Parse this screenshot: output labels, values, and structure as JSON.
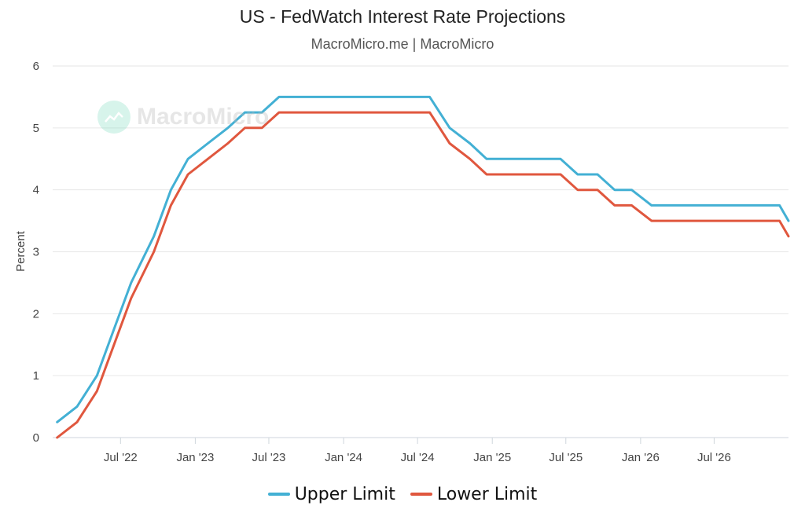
{
  "chart_data": {
    "type": "line",
    "title": "US - FedWatch Interest Rate Projections",
    "subtitle": "MacroMicro.me | MacroMicro",
    "ylabel": "Percent",
    "ylim": [
      0,
      6
    ],
    "yticks": [
      "0",
      "1",
      "2",
      "3",
      "4",
      "5",
      "6"
    ],
    "xticks": [
      "Jul '22",
      "Jan '23",
      "Jul '23",
      "Jan '24",
      "Jul '24",
      "Jan '25",
      "Jul '25",
      "Jan '26",
      "Jul '26"
    ],
    "xtick_dates": [
      "2022-07-01",
      "2023-01-01",
      "2023-07-01",
      "2024-01-01",
      "2024-07-01",
      "2025-01-01",
      "2025-07-01",
      "2026-01-01",
      "2026-07-01"
    ],
    "x_range": [
      "2022-01-15",
      "2026-12-31"
    ],
    "grid": true,
    "legend_position": "bottom-center",
    "series": [
      {
        "name": "Upper Limit",
        "color": "#43b0d4",
        "points": [
          [
            "2022-01-26",
            0.25
          ],
          [
            "2022-03-16",
            0.5
          ],
          [
            "2022-05-04",
            1.0
          ],
          [
            "2022-06-15",
            1.75
          ],
          [
            "2022-07-27",
            2.5
          ],
          [
            "2022-09-21",
            3.25
          ],
          [
            "2022-11-02",
            4.0
          ],
          [
            "2022-12-14",
            4.5
          ],
          [
            "2023-02-01",
            4.75
          ],
          [
            "2023-03-22",
            5.0
          ],
          [
            "2023-05-03",
            5.25
          ],
          [
            "2023-06-14",
            5.25
          ],
          [
            "2023-07-26",
            5.5
          ],
          [
            "2024-07-31",
            5.5
          ],
          [
            "2024-09-18",
            5.0
          ],
          [
            "2024-11-07",
            4.75
          ],
          [
            "2024-12-18",
            4.5
          ],
          [
            "2025-06-18",
            4.5
          ],
          [
            "2025-07-30",
            4.25
          ],
          [
            "2025-09-17",
            4.25
          ],
          [
            "2025-10-29",
            4.0
          ],
          [
            "2025-12-10",
            4.0
          ],
          [
            "2026-01-28",
            3.75
          ],
          [
            "2026-12-09",
            3.75
          ],
          [
            "2026-12-31",
            3.5
          ]
        ]
      },
      {
        "name": "Lower Limit",
        "color": "#e0573e",
        "points": [
          [
            "2022-01-26",
            0.0
          ],
          [
            "2022-03-16",
            0.25
          ],
          [
            "2022-05-04",
            0.75
          ],
          [
            "2022-06-15",
            1.5
          ],
          [
            "2022-07-27",
            2.25
          ],
          [
            "2022-09-21",
            3.0
          ],
          [
            "2022-11-02",
            3.75
          ],
          [
            "2022-12-14",
            4.25
          ],
          [
            "2023-02-01",
            4.5
          ],
          [
            "2023-03-22",
            4.75
          ],
          [
            "2023-05-03",
            5.0
          ],
          [
            "2023-06-14",
            5.0
          ],
          [
            "2023-07-26",
            5.25
          ],
          [
            "2024-07-31",
            5.25
          ],
          [
            "2024-09-18",
            4.75
          ],
          [
            "2024-11-07",
            4.5
          ],
          [
            "2024-12-18",
            4.25
          ],
          [
            "2025-06-18",
            4.25
          ],
          [
            "2025-07-30",
            4.0
          ],
          [
            "2025-09-17",
            4.0
          ],
          [
            "2025-10-29",
            3.75
          ],
          [
            "2025-12-10",
            3.75
          ],
          [
            "2026-01-28",
            3.5
          ],
          [
            "2026-12-09",
            3.5
          ],
          [
            "2026-12-31",
            3.25
          ]
        ]
      }
    ]
  },
  "watermark": {
    "text": "MacroMicro",
    "icon": "macromicro-logo-icon"
  }
}
